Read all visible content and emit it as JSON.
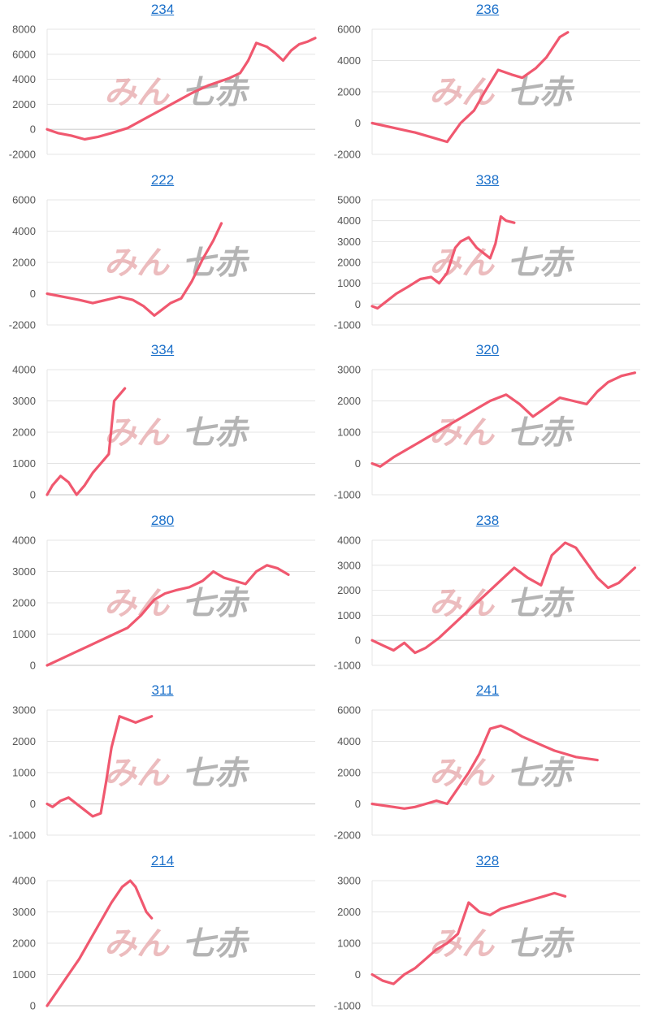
{
  "colors": {
    "line": "#f0586f",
    "link": "#1a6fc9",
    "grid": "#e4e4e4",
    "tick": "#555555"
  },
  "watermark": {
    "part1": "みん",
    "part2": "七赤"
  },
  "chart_data": [
    {
      "type": "line",
      "title": "234",
      "ylim": [
        -2000,
        8000
      ],
      "yticks": [
        8000,
        6000,
        4000,
        2000,
        0,
        -2000
      ],
      "grid": true,
      "xlim": [
        0,
        1
      ],
      "x": [
        0,
        0.04,
        0.09,
        0.14,
        0.19,
        0.24,
        0.3,
        0.36,
        0.42,
        0.48,
        0.54,
        0.6,
        0.64,
        0.68,
        0.72,
        0.75,
        0.78,
        0.82,
        0.85,
        0.88,
        0.91,
        0.94,
        0.97,
        1.0
      ],
      "y": [
        0,
        -300,
        -500,
        -800,
        -600,
        -300,
        100,
        800,
        1500,
        2200,
        2900,
        3500,
        3800,
        4100,
        4500,
        5500,
        6900,
        6600,
        6100,
        5500,
        6300,
        6800,
        7000,
        7300
      ]
    },
    {
      "type": "line",
      "title": "236",
      "ylim": [
        -2000,
        6000
      ],
      "yticks": [
        6000,
        4000,
        2000,
        0,
        -2000
      ],
      "grid": true,
      "xlim": [
        0,
        1
      ],
      "x": [
        0,
        0.08,
        0.16,
        0.22,
        0.28,
        0.33,
        0.38,
        0.42,
        0.47,
        0.52,
        0.56,
        0.61,
        0.65,
        0.7,
        0.73
      ],
      "y": [
        0,
        -300,
        -600,
        -900,
        -1200,
        0,
        800,
        2000,
        3400,
        3100,
        2900,
        3500,
        4200,
        5500,
        5800
      ]
    },
    {
      "type": "line",
      "title": "222",
      "ylim": [
        -2000,
        6000
      ],
      "yticks": [
        6000,
        4000,
        2000,
        0,
        -2000
      ],
      "grid": true,
      "xlim": [
        0,
        1
      ],
      "x": [
        0,
        0.06,
        0.12,
        0.17,
        0.22,
        0.27,
        0.32,
        0.36,
        0.4,
        0.43,
        0.46,
        0.5,
        0.54,
        0.58,
        0.62,
        0.65
      ],
      "y": [
        0,
        -200,
        -400,
        -600,
        -400,
        -200,
        -400,
        -800,
        -1400,
        -1000,
        -600,
        -300,
        800,
        2200,
        3400,
        4500
      ]
    },
    {
      "type": "line",
      "title": "338",
      "ylim": [
        -1000,
        5000
      ],
      "yticks": [
        5000,
        4000,
        3000,
        2000,
        1000,
        0,
        -1000
      ],
      "grid": true,
      "xlim": [
        0,
        1
      ],
      "x": [
        0,
        0.02,
        0.05,
        0.09,
        0.13,
        0.18,
        0.22,
        0.25,
        0.28,
        0.31,
        0.33,
        0.36,
        0.39,
        0.42,
        0.44,
        0.46,
        0.48,
        0.5,
        0.53
      ],
      "y": [
        -100,
        -200,
        100,
        500,
        800,
        1200,
        1300,
        1000,
        1500,
        2700,
        3000,
        3200,
        2700,
        2400,
        2200,
        2900,
        4200,
        4000,
        3900
      ]
    },
    {
      "type": "line",
      "title": "334",
      "ylim": [
        0,
        4000
      ],
      "yticks": [
        4000,
        3000,
        2000,
        1000,
        0
      ],
      "grid": true,
      "xlim": [
        0,
        1
      ],
      "x": [
        0,
        0.02,
        0.05,
        0.08,
        0.11,
        0.14,
        0.17,
        0.2,
        0.23,
        0.25,
        0.27,
        0.29
      ],
      "y": [
        0,
        300,
        600,
        400,
        0,
        300,
        700,
        1000,
        1300,
        3000,
        3200,
        3400
      ]
    },
    {
      "type": "line",
      "title": "320",
      "ylim": [
        -1000,
        3000
      ],
      "yticks": [
        3000,
        2000,
        1000,
        0,
        -1000
      ],
      "grid": true,
      "xlim": [
        0,
        1
      ],
      "x": [
        0,
        0.03,
        0.08,
        0.14,
        0.2,
        0.26,
        0.32,
        0.38,
        0.44,
        0.5,
        0.55,
        0.6,
        0.65,
        0.7,
        0.75,
        0.8,
        0.84,
        0.88,
        0.93,
        0.98
      ],
      "y": [
        0,
        -100,
        200,
        500,
        800,
        1100,
        1400,
        1700,
        2000,
        2200,
        1900,
        1500,
        1800,
        2100,
        2000,
        1900,
        2300,
        2600,
        2800,
        2900
      ]
    },
    {
      "type": "line",
      "title": "280",
      "ylim": [
        0,
        4000
      ],
      "yticks": [
        4000,
        3000,
        2000,
        1000,
        0
      ],
      "grid": true,
      "xlim": [
        0,
        1
      ],
      "x": [
        0,
        0.05,
        0.1,
        0.15,
        0.2,
        0.25,
        0.3,
        0.35,
        0.4,
        0.44,
        0.48,
        0.53,
        0.58,
        0.62,
        0.66,
        0.7,
        0.74,
        0.78,
        0.82,
        0.86,
        0.9
      ],
      "y": [
        0,
        200,
        400,
        600,
        800,
        1000,
        1200,
        1600,
        2100,
        2300,
        2400,
        2500,
        2700,
        3000,
        2800,
        2700,
        2600,
        3000,
        3200,
        3100,
        2900
      ]
    },
    {
      "type": "line",
      "title": "238",
      "ylim": [
        -1000,
        4000
      ],
      "yticks": [
        4000,
        3000,
        2000,
        1000,
        0,
        -1000
      ],
      "grid": true,
      "xlim": [
        0,
        1
      ],
      "x": [
        0,
        0.04,
        0.08,
        0.12,
        0.16,
        0.2,
        0.25,
        0.3,
        0.36,
        0.42,
        0.48,
        0.53,
        0.58,
        0.63,
        0.67,
        0.72,
        0.76,
        0.8,
        0.84,
        0.88,
        0.92,
        0.98
      ],
      "y": [
        0,
        -200,
        -400,
        -100,
        -500,
        -300,
        100,
        600,
        1200,
        1800,
        2400,
        2900,
        2500,
        2200,
        3400,
        3900,
        3700,
        3100,
        2500,
        2100,
        2300,
        2900
      ]
    },
    {
      "type": "line",
      "title": "311",
      "ylim": [
        -1000,
        3000
      ],
      "yticks": [
        3000,
        2000,
        1000,
        0,
        -1000
      ],
      "grid": true,
      "xlim": [
        0,
        1
      ],
      "x": [
        0,
        0.02,
        0.05,
        0.08,
        0.11,
        0.14,
        0.17,
        0.2,
        0.22,
        0.24,
        0.27,
        0.3,
        0.33,
        0.36,
        0.39
      ],
      "y": [
        0,
        -100,
        100,
        200,
        0,
        -200,
        -400,
        -300,
        700,
        1800,
        2800,
        2700,
        2600,
        2700,
        2800
      ]
    },
    {
      "type": "line",
      "title": "241",
      "ylim": [
        -2000,
        6000
      ],
      "yticks": [
        6000,
        4000,
        2000,
        0,
        -2000
      ],
      "grid": true,
      "xlim": [
        0,
        1
      ],
      "x": [
        0,
        0.04,
        0.08,
        0.12,
        0.16,
        0.2,
        0.24,
        0.28,
        0.32,
        0.36,
        0.4,
        0.44,
        0.48,
        0.52,
        0.56,
        0.6,
        0.64,
        0.68,
        0.72,
        0.76,
        0.8,
        0.84
      ],
      "y": [
        0,
        -100,
        -200,
        -300,
        -200,
        0,
        200,
        0,
        1000,
        2000,
        3200,
        4800,
        5000,
        4700,
        4300,
        4000,
        3700,
        3400,
        3200,
        3000,
        2900,
        2800
      ]
    },
    {
      "type": "line",
      "title": "214",
      "ylim": [
        0,
        4000
      ],
      "yticks": [
        4000,
        3000,
        2000,
        1000,
        0
      ],
      "grid": true,
      "xlim": [
        0,
        1
      ],
      "x": [
        0,
        0.04,
        0.08,
        0.12,
        0.16,
        0.2,
        0.24,
        0.28,
        0.31,
        0.33,
        0.35,
        0.37,
        0.39
      ],
      "y": [
        0,
        500,
        1000,
        1500,
        2100,
        2700,
        3300,
        3800,
        4000,
        3800,
        3400,
        3000,
        2800
      ]
    },
    {
      "type": "line",
      "title": "328",
      "ylim": [
        -1000,
        3000
      ],
      "yticks": [
        3000,
        2000,
        1000,
        0,
        -1000
      ],
      "grid": true,
      "xlim": [
        0,
        1
      ],
      "x": [
        0,
        0.04,
        0.08,
        0.12,
        0.16,
        0.2,
        0.24,
        0.28,
        0.32,
        0.36,
        0.4,
        0.44,
        0.48,
        0.52,
        0.56,
        0.6,
        0.64,
        0.68,
        0.72
      ],
      "y": [
        0,
        -200,
        -300,
        0,
        200,
        500,
        800,
        1000,
        1300,
        2300,
        2000,
        1900,
        2100,
        2200,
        2300,
        2400,
        2500,
        2600,
        2500
      ]
    }
  ]
}
